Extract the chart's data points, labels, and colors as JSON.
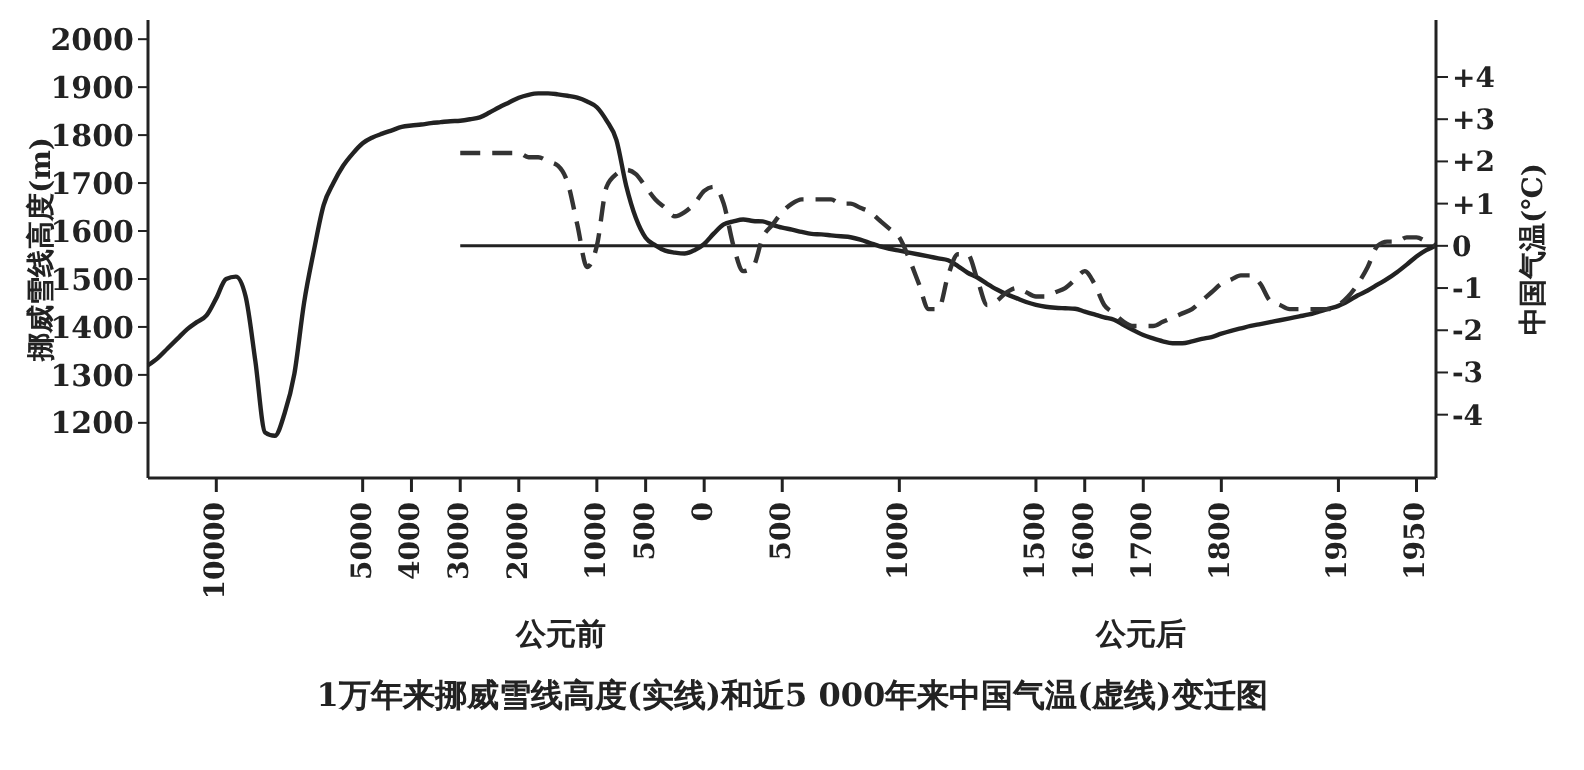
{
  "chart_data": {
    "type": "line",
    "title": "1万年来挪威雪线高度(实线)和近5 000年来中国气温(虚线)变迁图",
    "ylabel": "挪威雪线高度(m)",
    "y2label": "中国气温(℃)",
    "annotations": [
      "公元前",
      "公元后"
    ],
    "categories": [
      null,
      null,
      null,
      null,
      null,
      null,
      null,
      "10000",
      null,
      null,
      null,
      null,
      null,
      null,
      null,
      null,
      null,
      null,
      null,
      null,
      null,
      null,
      "5000",
      null,
      null,
      null,
      null,
      "4000",
      null,
      null,
      null,
      null,
      "3000",
      null,
      null,
      null,
      null,
      null,
      "2000",
      null,
      null,
      null,
      null,
      null,
      null,
      null,
      "1000",
      null,
      null,
      null,
      null,
      "500",
      null,
      null,
      null,
      null,
      null,
      "0",
      null,
      null,
      null,
      null,
      null,
      null,
      null,
      "500",
      null,
      null,
      null,
      null,
      null,
      null,
      null,
      null,
      null,
      null,
      null,
      "1000",
      null,
      null,
      null,
      null,
      null,
      null,
      null,
      null,
      null,
      null,
      null,
      null,
      null,
      "1500",
      null,
      null,
      null,
      null,
      "1600",
      null,
      null,
      null,
      null,
      null,
      "1700",
      null,
      null,
      null,
      null,
      null,
      null,
      null,
      "1800",
      null,
      null,
      null,
      null,
      null,
      null,
      null,
      null,
      null,
      null,
      null,
      "1900",
      null,
      null,
      null,
      null,
      null,
      null,
      null,
      "1950",
      null,
      null
    ],
    "series": [
      {
        "color": "#222222",
        "line_style": "solid",
        "values": [
          1320,
          1335,
          1355,
          1375,
          1395,
          1410,
          1424,
          1460,
          1500,
          1505,
          1464,
          1329,
          1180,
          1173,
          1220,
          1302,
          1451,
          1559,
          1654,
          1700,
          1736,
          1762,
          1783,
          1795,
          1803,
          1810,
          1817,
          1820,
          1822,
          1825,
          1827,
          1829,
          1830,
          1833,
          1837,
          1847,
          1858,
          1868,
          1878,
          1884,
          1887,
          1887,
          1885,
          1882,
          1878,
          1870,
          1858,
          1830,
          1790,
          1695,
          1627,
          1586,
          1570,
          1559,
          1555,
          1553,
          1560,
          1573,
          1595,
          1614,
          1620,
          1624,
          1621,
          1620,
          1613,
          1607,
          1603,
          1598,
          1594,
          1593,
          1591,
          1589,
          1587,
          1582,
          1575,
          1568,
          1563,
          1559,
          1555,
          1551,
          1547,
          1543,
          1539,
          1527,
          1513,
          1503,
          1490,
          1478,
          1468,
          1460,
          1452,
          1446,
          1442,
          1440,
          1439,
          1438,
          1432,
          1426,
          1420,
          1415,
          1404,
          1393,
          1383,
          1376,
          1370,
          1366,
          1366,
          1370,
          1375,
          1379,
          1386,
          1392,
          1397,
          1402,
          1406,
          1410,
          1414,
          1418,
          1422,
          1426,
          1432,
          1438,
          1444,
          1454,
          1466,
          1476,
          1488,
          1500,
          1514,
          1530,
          1547,
          1560,
          1570
        ]
      },
      {
        "color": "#333333",
        "line_style": "dashed",
        "axis": "y2",
        "values": [
          null,
          null,
          null,
          null,
          null,
          null,
          null,
          null,
          null,
          null,
          null,
          null,
          null,
          null,
          null,
          null,
          null,
          null,
          null,
          null,
          null,
          null,
          null,
          null,
          null,
          null,
          null,
          null,
          null,
          null,
          null,
          null,
          2.2,
          2.2,
          2.2,
          2.2,
          2.2,
          2.2,
          2.2,
          2.1,
          2.1,
          2.0,
          1.9,
          1.5,
          0.5,
          -0.5,
          0,
          1.4,
          1.7,
          1.8,
          1.7,
          1.4,
          1.1,
          0.9,
          0.7,
          0.8,
          1.0,
          1.3,
          1.4,
          1.0,
          0.0,
          -0.6,
          -0.5,
          0.2,
          0.5,
          0.8,
          1.0,
          1.1,
          1.1,
          1.1,
          1.1,
          1.0,
          1.0,
          0.9,
          0.8,
          0.6,
          0.4,
          0.2,
          -0.3,
          -0.9,
          -1.5,
          -1.5,
          -0.7,
          -0.2,
          -0.2,
          -0.8,
          -1.4,
          -1.3,
          -1.1,
          -1.0,
          -1.1,
          -1.2,
          -1.2,
          -1.1,
          -1.0,
          -0.8,
          -0.6,
          -0.9,
          -1.4,
          -1.6,
          -1.8,
          -1.9,
          -1.9,
          -1.9,
          -1.8,
          -1.7,
          -1.6,
          -1.5,
          -1.3,
          -1.1,
          -0.9,
          -0.8,
          -0.7,
          -0.7,
          -0.9,
          -1.3,
          -1.4,
          -1.5,
          -1.5,
          -1.5,
          -1.5,
          -1.5,
          -1.4,
          -1.2,
          -0.9,
          -0.5,
          0,
          0.1,
          0.1,
          0.2,
          0.2,
          0.1,
          0
        ]
      }
    ],
    "ylim": [
      1085,
      2040
    ],
    "yticks": [
      1200,
      1300,
      1400,
      1500,
      1600,
      1700,
      1800,
      1900,
      2000
    ],
    "y2lim": [
      -5.5,
      5.35
    ],
    "y2ticks": [
      {
        "value": 4,
        "label": "+4"
      },
      {
        "value": 3,
        "label": "+3"
      },
      {
        "value": 2,
        "label": "+2"
      },
      {
        "value": 1,
        "label": "+1"
      },
      0,
      -1,
      -2,
      -3,
      -4
    ],
    "ref_lines": [
      {
        "axis": "y2",
        "value": 0,
        "color": "#222222"
      }
    ],
    "grid": false,
    "legend": false
  }
}
